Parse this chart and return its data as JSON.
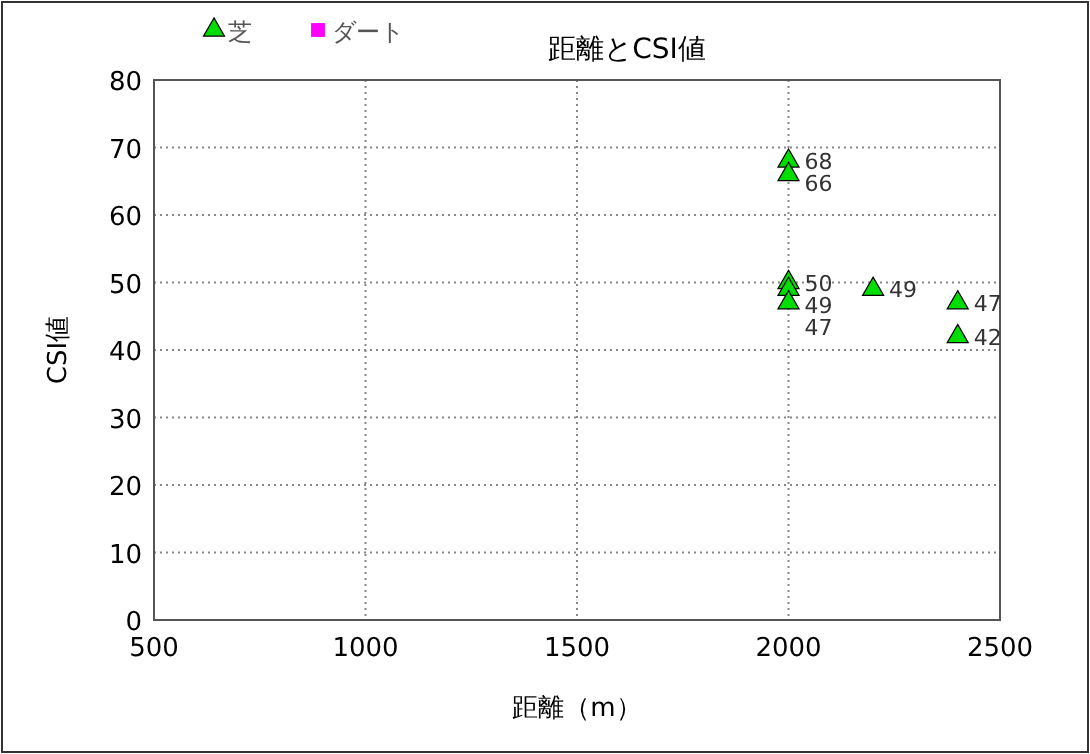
{
  "chart_data": {
    "type": "scatter",
    "title": "距離とCSI値",
    "xlabel": "距離（m）",
    "ylabel": "CSI値",
    "xlim": [
      500,
      2500
    ],
    "xticks": [
      500,
      1000,
      1500,
      2000,
      2500
    ],
    "ylim": [
      0,
      80
    ],
    "yticks": [
      0,
      10,
      20,
      30,
      40,
      50,
      60,
      70,
      80
    ],
    "grid": true,
    "legend": "top left",
    "data_labels": true,
    "series": [
      {
        "name": "芝",
        "color": "#00dd00",
        "marker": "triangle",
        "x": [
          2000,
          2000,
          2000,
          2000,
          2000,
          2200,
          2400,
          2400
        ],
        "values": [
          68,
          66,
          50,
          49,
          47,
          49,
          47,
          42
        ]
      },
      {
        "name": "ダート",
        "color": "#ff00ff",
        "marker": "square"
      }
    ]
  }
}
